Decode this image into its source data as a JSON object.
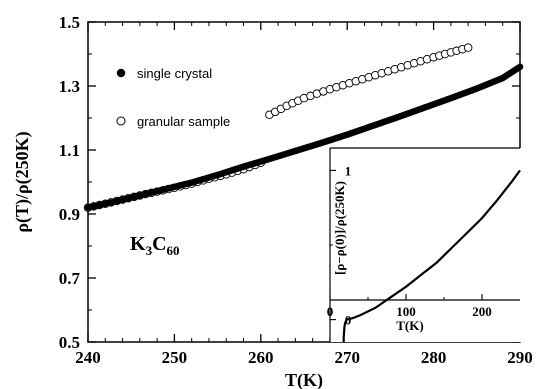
{
  "chart_data": [
    {
      "type": "scatter",
      "title": "",
      "xlabel": "T(K)",
      "ylabel": "ρ(T)/ρ(250K)",
      "xlim": [
        240,
        290
      ],
      "ylim": [
        0.5,
        1.5
      ],
      "x_ticks": [
        "240",
        "250",
        "260",
        "270",
        "280",
        "290"
      ],
      "y_ticks": [
        "0.5",
        "0.7",
        "0.9",
        "1.1",
        "1.3",
        "1.5"
      ],
      "legend_position": "top-left",
      "annotation": {
        "main": "K",
        "sub1": "3",
        "mid": "C",
        "sub2": "60"
      },
      "series": [
        {
          "name": "single crystal",
          "marker": "filled-circle",
          "points": [
            [
              240,
              0.92
            ],
            [
              243,
              0.938
            ],
            [
              246,
              0.958
            ],
            [
              249,
              0.978
            ],
            [
              252,
              0.998
            ],
            [
              255,
              1.022
            ],
            [
              258,
              1.048
            ],
            [
              261,
              1.072
            ],
            [
              264,
              1.097
            ],
            [
              267,
              1.122
            ],
            [
              270,
              1.148
            ],
            [
              273,
              1.176
            ],
            [
              276,
              1.204
            ],
            [
              279,
              1.233
            ],
            [
              282,
              1.262
            ],
            [
              285,
              1.292
            ],
            [
              288,
              1.325
            ],
            [
              290,
              1.36
            ]
          ]
        },
        {
          "name": "granular sample",
          "marker": "open-circle",
          "points": [
            [
              240,
              0.92
            ],
            [
              242,
              0.932
            ],
            [
              244,
              0.945
            ],
            [
              246,
              0.958
            ],
            [
              248,
              0.97
            ],
            [
              250,
              0.982
            ],
            [
              252,
              0.995
            ],
            [
              254,
              1.01
            ],
            [
              256,
              1.024
            ],
            [
              258,
              1.04
            ],
            [
              260,
              1.06
            ],
            [
              261,
              1.21
            ],
            [
              263,
              1.238
            ],
            [
              265,
              1.262
            ],
            [
              268,
              1.29
            ],
            [
              271,
              1.315
            ],
            [
              274,
              1.34
            ],
            [
              277,
              1.365
            ],
            [
              280,
              1.39
            ],
            [
              282,
              1.405
            ],
            [
              284,
              1.42
            ]
          ]
        }
      ]
    },
    {
      "type": "line",
      "title": "",
      "xlabel": "T(K)",
      "ylabel": "[ρ−ρ(0)]/ρ(250K)",
      "xlim": [
        0,
        250
      ],
      "ylim": [
        -0.15,
        1.15
      ],
      "x_ticks": [
        "0",
        "100",
        "200"
      ],
      "y_ticks": [
        "0",
        "1"
      ],
      "series": [
        {
          "x": [
            18,
            18,
            19,
            20,
            22,
            30,
            40,
            60,
            80,
            100,
            120,
            140,
            160,
            180,
            200,
            220,
            240,
            250
          ],
          "y": [
            -0.15,
            -0.12,
            -0.05,
            -0.02,
            0.0,
            0.01,
            0.03,
            0.08,
            0.15,
            0.22,
            0.3,
            0.38,
            0.48,
            0.58,
            0.68,
            0.8,
            0.93,
            1.0
          ]
        }
      ]
    }
  ]
}
